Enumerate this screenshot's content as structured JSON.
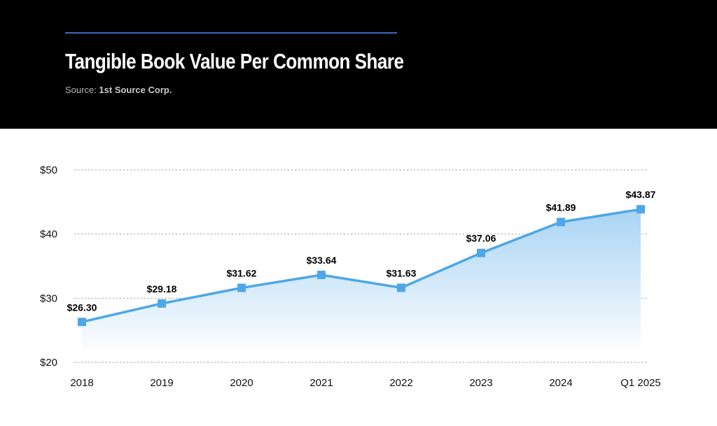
{
  "header": {
    "title": "Tangible Book Value Per Common Share",
    "source_prefix": "Source: ",
    "source_name": "1st Source Corp."
  },
  "colors": {
    "header_bg": "#000000",
    "accent_rule": "#3b6bb8",
    "line": "#4ea7e6",
    "area_top": "#a9d4f4",
    "area_bottom": "#ffffff",
    "grid": "#9a9a9a"
  },
  "chart_data": {
    "type": "area",
    "title": "Tangible Book Value Per Common Share",
    "categories": [
      "2018",
      "2019",
      "2020",
      "2021",
      "2022",
      "2023",
      "2024",
      "Q1 2025"
    ],
    "series": [
      {
        "values": [
          26.3,
          29.18,
          31.62,
          33.64,
          31.63,
          37.06,
          41.89,
          43.87
        ],
        "data_labels": [
          "$26.30",
          "$29.18",
          "$31.62",
          "$33.64",
          "$31.63",
          "$37.06",
          "$41.89",
          "$43.87"
        ]
      }
    ],
    "y_ticks": [
      20,
      30,
      40,
      50
    ],
    "y_tick_labels": [
      "$20",
      "$30",
      "$40",
      "$50"
    ],
    "ylim": [
      20,
      50
    ],
    "grid": true,
    "marker": "square"
  }
}
